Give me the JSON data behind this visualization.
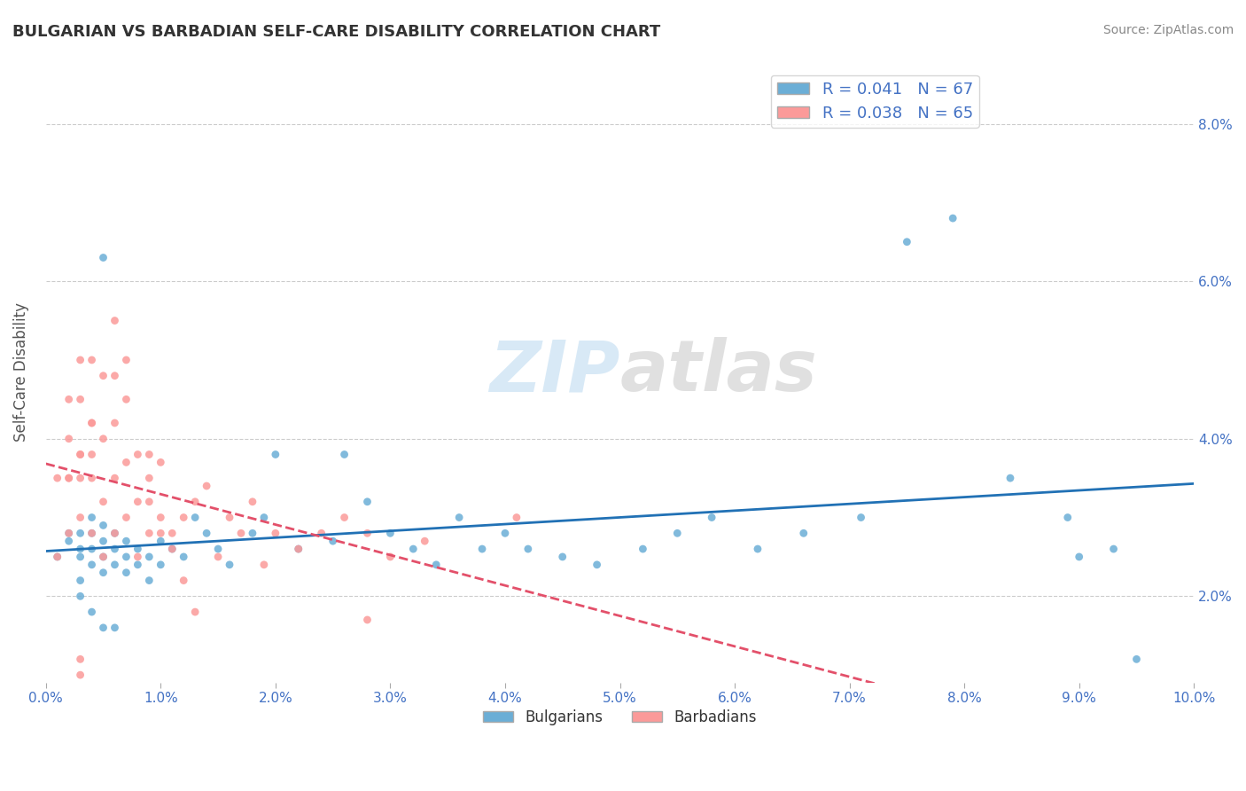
{
  "title": "BULGARIAN VS BARBADIAN SELF-CARE DISABILITY CORRELATION CHART",
  "source": "Source: ZipAtlas.com",
  "xlim": [
    0.0,
    0.1
  ],
  "ylim": [
    0.009,
    0.088
  ],
  "bulgarian_color": "#6baed6",
  "barbadian_color": "#fb9a99",
  "bulgarian_line_color": "#2171b5",
  "barbadian_line_color": "#e3506a",
  "legend_R_bulgarian": "R = 0.041",
  "legend_N_bulgarian": "N = 67",
  "legend_R_barbadian": "R = 0.038",
  "legend_N_barbadian": "N = 65",
  "watermark_zip": "ZIP",
  "watermark_atlas": "atlas",
  "bg_color": "#ffffff",
  "grid_color": "#cccccc",
  "bulgarians_x": [
    0.001,
    0.002,
    0.002,
    0.003,
    0.003,
    0.003,
    0.004,
    0.004,
    0.004,
    0.004,
    0.005,
    0.005,
    0.005,
    0.005,
    0.006,
    0.006,
    0.006,
    0.007,
    0.007,
    0.007,
    0.008,
    0.008,
    0.009,
    0.009,
    0.01,
    0.01,
    0.011,
    0.012,
    0.013,
    0.014,
    0.015,
    0.016,
    0.018,
    0.019,
    0.02,
    0.022,
    0.025,
    0.026,
    0.028,
    0.03,
    0.032,
    0.034,
    0.036,
    0.038,
    0.04,
    0.042,
    0.045,
    0.048,
    0.052,
    0.055,
    0.058,
    0.062,
    0.066,
    0.071,
    0.075,
    0.079,
    0.084,
    0.089,
    0.093,
    0.003,
    0.003,
    0.004,
    0.005,
    0.006,
    0.005,
    0.09,
    0.095
  ],
  "bulgarians_y": [
    0.025,
    0.027,
    0.028,
    0.025,
    0.026,
    0.028,
    0.024,
    0.026,
    0.028,
    0.03,
    0.023,
    0.025,
    0.027,
    0.029,
    0.024,
    0.026,
    0.028,
    0.023,
    0.025,
    0.027,
    0.024,
    0.026,
    0.022,
    0.025,
    0.024,
    0.027,
    0.026,
    0.025,
    0.03,
    0.028,
    0.026,
    0.024,
    0.028,
    0.03,
    0.038,
    0.026,
    0.027,
    0.038,
    0.032,
    0.028,
    0.026,
    0.024,
    0.03,
    0.026,
    0.028,
    0.026,
    0.025,
    0.024,
    0.026,
    0.028,
    0.03,
    0.026,
    0.028,
    0.03,
    0.065,
    0.068,
    0.035,
    0.03,
    0.026,
    0.022,
    0.02,
    0.018,
    0.016,
    0.016,
    0.063,
    0.025,
    0.012
  ],
  "barbadians_x": [
    0.001,
    0.001,
    0.002,
    0.002,
    0.002,
    0.003,
    0.003,
    0.003,
    0.004,
    0.004,
    0.004,
    0.005,
    0.005,
    0.005,
    0.006,
    0.006,
    0.006,
    0.007,
    0.007,
    0.008,
    0.008,
    0.009,
    0.009,
    0.01,
    0.01,
    0.011,
    0.012,
    0.013,
    0.014,
    0.015,
    0.016,
    0.017,
    0.018,
    0.019,
    0.02,
    0.022,
    0.024,
    0.026,
    0.028,
    0.03,
    0.003,
    0.004,
    0.005,
    0.006,
    0.007,
    0.008,
    0.009,
    0.01,
    0.011,
    0.012,
    0.013,
    0.007,
    0.009,
    0.004,
    0.004,
    0.003,
    0.003,
    0.002,
    0.002,
    0.041,
    0.028,
    0.033,
    0.003,
    0.003,
    0.006
  ],
  "barbadians_y": [
    0.025,
    0.035,
    0.028,
    0.035,
    0.045,
    0.03,
    0.038,
    0.045,
    0.028,
    0.035,
    0.042,
    0.025,
    0.032,
    0.04,
    0.028,
    0.035,
    0.042,
    0.03,
    0.037,
    0.025,
    0.032,
    0.028,
    0.035,
    0.03,
    0.037,
    0.028,
    0.03,
    0.032,
    0.034,
    0.025,
    0.03,
    0.028,
    0.032,
    0.024,
    0.028,
    0.026,
    0.028,
    0.03,
    0.017,
    0.025,
    0.05,
    0.05,
    0.048,
    0.048,
    0.045,
    0.038,
    0.032,
    0.028,
    0.026,
    0.022,
    0.018,
    0.05,
    0.038,
    0.038,
    0.042,
    0.035,
    0.038,
    0.035,
    0.04,
    0.03,
    0.028,
    0.027,
    0.012,
    0.01,
    0.055
  ]
}
